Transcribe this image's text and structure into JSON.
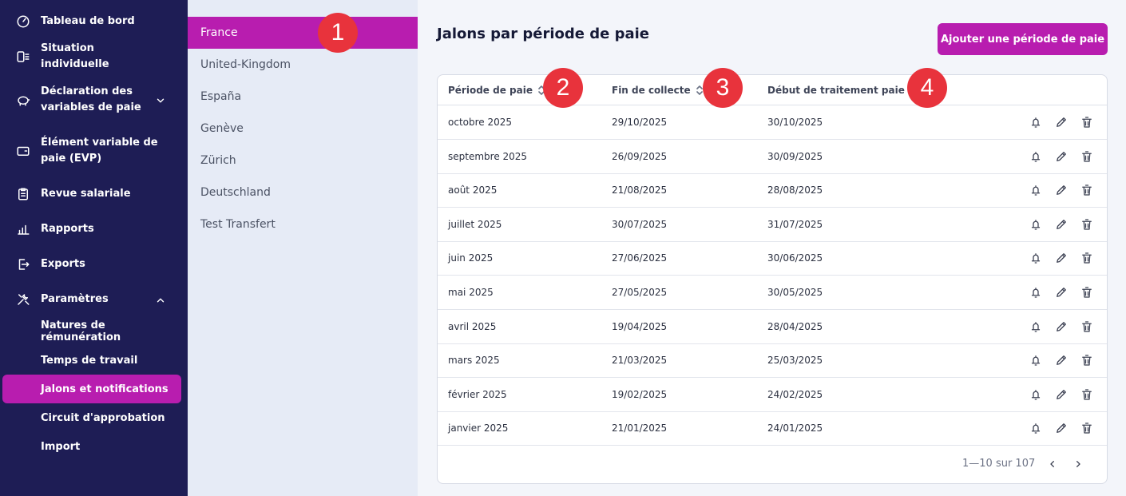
{
  "sidebar": {
    "items": [
      {
        "label": "Tableau de bord",
        "icon": "gauge-icon"
      },
      {
        "label": "Situation individuelle",
        "icon": "person-list-icon"
      },
      {
        "label": "Déclaration des variables de paie",
        "icon": "piggy-bank-icon",
        "expanded": false
      },
      {
        "label": "Élément variable de paie (EVP)",
        "icon": "wallet-icon"
      },
      {
        "label": "Revue salariale",
        "icon": "clipboard-icon"
      },
      {
        "label": "Rapports",
        "icon": "bar-chart-icon"
      },
      {
        "label": "Exports",
        "icon": "export-icon"
      },
      {
        "label": "Paramètres",
        "icon": "tools-icon",
        "expanded": true
      }
    ],
    "sub_items": [
      {
        "label": "Natures de rémunération"
      },
      {
        "label": "Temps de travail"
      },
      {
        "label": "Jalons et notifications",
        "active": true
      },
      {
        "label": "Circuit d'approbation"
      },
      {
        "label": "Import"
      }
    ]
  },
  "countries": [
    {
      "label": "France",
      "active": true
    },
    {
      "label": "United-Kingdom"
    },
    {
      "label": "España"
    },
    {
      "label": "Genève"
    },
    {
      "label": "Zürich"
    },
    {
      "label": "Deutschland"
    },
    {
      "label": "Test Transfert"
    }
  ],
  "main": {
    "title": "Jalons par période de paie",
    "add_button": "Ajouter une période de paie"
  },
  "table": {
    "columns": [
      "Période de paie",
      "Fin de collecte",
      "Début de traitement paie"
    ],
    "rows": [
      [
        "octobre 2025",
        "29/10/2025",
        "30/10/2025"
      ],
      [
        "septembre 2025",
        "26/09/2025",
        "30/09/2025"
      ],
      [
        "août 2025",
        "21/08/2025",
        "28/08/2025"
      ],
      [
        "juillet 2025",
        "30/07/2025",
        "31/07/2025"
      ],
      [
        "juin 2025",
        "27/06/2025",
        "30/06/2025"
      ],
      [
        "mai 2025",
        "27/05/2025",
        "30/05/2025"
      ],
      [
        "avril 2025",
        "19/04/2025",
        "28/04/2025"
      ],
      [
        "mars 2025",
        "21/03/2025",
        "25/03/2025"
      ],
      [
        "février 2025",
        "19/02/2025",
        "24/02/2025"
      ],
      [
        "janvier 2025",
        "21/01/2025",
        "24/01/2025"
      ]
    ],
    "row_actions": [
      "bell-icon",
      "pencil-icon",
      "trash-icon"
    ],
    "pagination": "1—10 sur 107"
  },
  "badges": [
    "1",
    "2",
    "3",
    "4"
  ],
  "colors": {
    "sidebar": "#1e1d55",
    "accent": "#b81daf",
    "badge": "#e8333c",
    "panel": "#e6ebf6"
  }
}
